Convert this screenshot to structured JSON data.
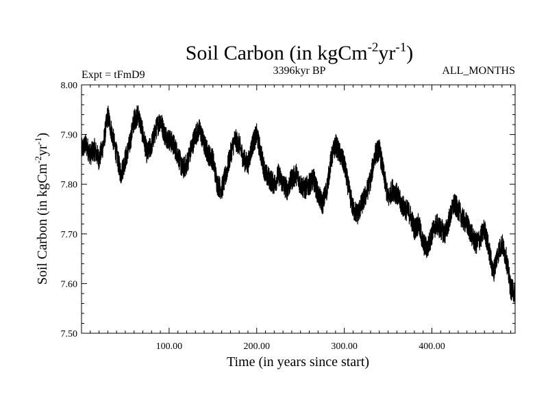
{
  "chart_data": {
    "type": "line",
    "title": {
      "base": "Soil Carbon (in kgCm",
      "exp1": "-2",
      "mid": "yr",
      "exp2": "-1",
      "end": ")"
    },
    "expt_label": "Expt = tFmD9",
    "period_label": "3396kyr BP",
    "months_label": "ALL_MONTHS",
    "xlabel": "Time (in years since start)",
    "ylabel": {
      "base": "Soil Carbon (in kgCm",
      "exp1": "-2",
      "mid": "yr",
      "exp2": "-1",
      "end": ")"
    },
    "xlim": [
      0,
      495
    ],
    "ylim": [
      7.5,
      8.0
    ],
    "x_ticks_major": [
      100,
      200,
      300,
      400
    ],
    "x_tick_labels": [
      "100.00",
      "200.00",
      "300.00",
      "400.00"
    ],
    "x_minor_step": 10,
    "y_ticks_major": [
      7.5,
      7.6,
      7.7,
      7.8,
      7.9,
      8.0
    ],
    "y_tick_labels": [
      "7.50",
      "7.60",
      "7.70",
      "7.80",
      "7.90",
      "8.00"
    ],
    "y_minor_step": 0.02,
    "line_color": "#000000",
    "series": [
      {
        "name": "Soil Carbon",
        "x": [
          0,
          5,
          10,
          15,
          20,
          25,
          30,
          35,
          40,
          45,
          50,
          55,
          60,
          65,
          70,
          75,
          80,
          85,
          90,
          95,
          100,
          105,
          110,
          115,
          120,
          125,
          130,
          135,
          140,
          145,
          150,
          155,
          160,
          165,
          170,
          175,
          180,
          185,
          190,
          195,
          200,
          205,
          210,
          215,
          220,
          225,
          230,
          235,
          240,
          245,
          250,
          255,
          260,
          265,
          270,
          275,
          280,
          285,
          290,
          295,
          300,
          305,
          310,
          315,
          320,
          325,
          330,
          335,
          340,
          345,
          350,
          355,
          360,
          365,
          370,
          375,
          380,
          385,
          390,
          395,
          400,
          405,
          410,
          415,
          420,
          425,
          430,
          435,
          440,
          445,
          450,
          455,
          460,
          465,
          470,
          475,
          480,
          485,
          490,
          495
        ],
        "values": [
          7.87,
          7.88,
          7.86,
          7.87,
          7.85,
          7.88,
          7.94,
          7.9,
          7.86,
          7.82,
          7.85,
          7.88,
          7.93,
          7.94,
          7.9,
          7.86,
          7.88,
          7.91,
          7.93,
          7.9,
          7.89,
          7.88,
          7.86,
          7.83,
          7.84,
          7.87,
          7.9,
          7.91,
          7.88,
          7.86,
          7.85,
          7.8,
          7.79,
          7.82,
          7.86,
          7.89,
          7.88,
          7.85,
          7.84,
          7.88,
          7.9,
          7.86,
          7.82,
          7.81,
          7.8,
          7.82,
          7.8,
          7.79,
          7.81,
          7.82,
          7.8,
          7.79,
          7.8,
          7.81,
          7.78,
          7.76,
          7.79,
          7.85,
          7.88,
          7.86,
          7.84,
          7.79,
          7.75,
          7.74,
          7.76,
          7.78,
          7.81,
          7.86,
          7.87,
          7.82,
          7.77,
          7.79,
          7.78,
          7.76,
          7.75,
          7.74,
          7.71,
          7.72,
          7.68,
          7.67,
          7.7,
          7.72,
          7.71,
          7.7,
          7.73,
          7.76,
          7.75,
          7.73,
          7.72,
          7.7,
          7.68,
          7.69,
          7.71,
          7.67,
          7.62,
          7.66,
          7.68,
          7.65,
          7.59,
          7.58
        ]
      }
    ]
  }
}
